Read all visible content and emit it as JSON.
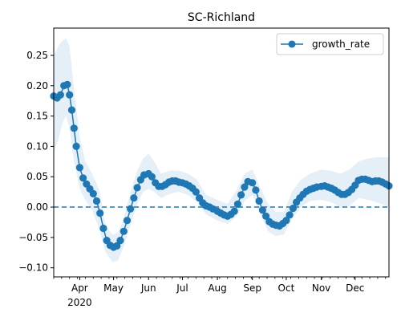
{
  "chart_data": {
    "type": "line",
    "title": "SC-Richland",
    "xlabel": "",
    "ylabel": "",
    "x_range": [
      "2020-03-09",
      "2020-12-31"
    ],
    "ylim": [
      -0.115,
      0.295
    ],
    "yticks": [
      -0.1,
      -0.05,
      0.0,
      0.05,
      0.1,
      0.15,
      0.2,
      0.25
    ],
    "ytick_labels": [
      "−0.10",
      "−0.05",
      "0.00",
      "0.05",
      "0.10",
      "0.15",
      "0.20",
      "0.25"
    ],
    "xticks": [
      {
        "date": "2020-04-01",
        "label": "Apr",
        "sublabel": "2020"
      },
      {
        "date": "2020-05-01",
        "label": "May",
        "sublabel": ""
      },
      {
        "date": "2020-06-01",
        "label": "Jun",
        "sublabel": ""
      },
      {
        "date": "2020-07-01",
        "label": "Jul",
        "sublabel": ""
      },
      {
        "date": "2020-08-01",
        "label": "Aug",
        "sublabel": ""
      },
      {
        "date": "2020-09-01",
        "label": "Sep",
        "sublabel": ""
      },
      {
        "date": "2020-10-01",
        "label": "Oct",
        "sublabel": ""
      },
      {
        "date": "2020-11-01",
        "label": "Nov",
        "sublabel": ""
      },
      {
        "date": "2020-12-01",
        "label": "Dec",
        "sublabel": ""
      }
    ],
    "grid": false,
    "legend": {
      "position": "top-right",
      "entries": [
        "growth_rate"
      ]
    },
    "reference_line": {
      "y": 0.0,
      "style": "dashed",
      "color": "#1f77b4"
    },
    "colors": {
      "series": "#1f77b4",
      "band": "#d6e6f5"
    },
    "series": [
      {
        "name": "growth_rate",
        "points": [
          [
            "2020-03-09",
            0.183
          ],
          [
            "2020-03-12",
            0.18
          ],
          [
            "2020-03-15",
            0.185
          ],
          [
            "2020-03-18",
            0.2
          ],
          [
            "2020-03-21",
            0.202
          ],
          [
            "2020-03-23",
            0.185
          ],
          [
            "2020-03-25",
            0.16
          ],
          [
            "2020-03-27",
            0.13
          ],
          [
            "2020-03-29",
            0.1
          ],
          [
            "2020-04-01",
            0.065
          ],
          [
            "2020-04-04",
            0.048
          ],
          [
            "2020-04-07",
            0.038
          ],
          [
            "2020-04-10",
            0.03
          ],
          [
            "2020-04-13",
            0.022
          ],
          [
            "2020-04-16",
            0.01
          ],
          [
            "2020-04-19",
            -0.01
          ],
          [
            "2020-04-22",
            -0.035
          ],
          [
            "2020-04-25",
            -0.055
          ],
          [
            "2020-04-28",
            -0.063
          ],
          [
            "2020-05-01",
            -0.066
          ],
          [
            "2020-05-04",
            -0.064
          ],
          [
            "2020-05-07",
            -0.055
          ],
          [
            "2020-05-10",
            -0.04
          ],
          [
            "2020-05-13",
            -0.022
          ],
          [
            "2020-05-16",
            -0.003
          ],
          [
            "2020-05-19",
            0.015
          ],
          [
            "2020-05-22",
            0.032
          ],
          [
            "2020-05-25",
            0.045
          ],
          [
            "2020-05-28",
            0.053
          ],
          [
            "2020-06-01",
            0.055
          ],
          [
            "2020-06-04",
            0.05
          ],
          [
            "2020-06-07",
            0.04
          ],
          [
            "2020-06-10",
            0.034
          ],
          [
            "2020-06-13",
            0.034
          ],
          [
            "2020-06-16",
            0.037
          ],
          [
            "2020-06-19",
            0.041
          ],
          [
            "2020-06-22",
            0.043
          ],
          [
            "2020-06-25",
            0.043
          ],
          [
            "2020-06-28",
            0.041
          ],
          [
            "2020-07-01",
            0.04
          ],
          [
            "2020-07-04",
            0.038
          ],
          [
            "2020-07-07",
            0.035
          ],
          [
            "2020-07-10",
            0.031
          ],
          [
            "2020-07-13",
            0.025
          ],
          [
            "2020-07-16",
            0.015
          ],
          [
            "2020-07-19",
            0.007
          ],
          [
            "2020-07-22",
            0.002
          ],
          [
            "2020-07-25",
            0.0
          ],
          [
            "2020-07-28",
            -0.003
          ],
          [
            "2020-08-01",
            -0.007
          ],
          [
            "2020-08-04",
            -0.01
          ],
          [
            "2020-08-07",
            -0.013
          ],
          [
            "2020-08-10",
            -0.015
          ],
          [
            "2020-08-13",
            -0.012
          ],
          [
            "2020-08-16",
            -0.007
          ],
          [
            "2020-08-19",
            0.005
          ],
          [
            "2020-08-22",
            0.02
          ],
          [
            "2020-08-25",
            0.033
          ],
          [
            "2020-08-28",
            0.042
          ],
          [
            "2020-09-01",
            0.04
          ],
          [
            "2020-09-04",
            0.028
          ],
          [
            "2020-09-07",
            0.01
          ],
          [
            "2020-09-10",
            -0.005
          ],
          [
            "2020-09-13",
            -0.015
          ],
          [
            "2020-09-16",
            -0.024
          ],
          [
            "2020-09-19",
            -0.028
          ],
          [
            "2020-09-22",
            -0.03
          ],
          [
            "2020-09-25",
            -0.031
          ],
          [
            "2020-09-28",
            -0.027
          ],
          [
            "2020-10-01",
            -0.022
          ],
          [
            "2020-10-04",
            -0.013
          ],
          [
            "2020-10-07",
            -0.002
          ],
          [
            "2020-10-10",
            0.008
          ],
          [
            "2020-10-13",
            0.015
          ],
          [
            "2020-10-16",
            0.021
          ],
          [
            "2020-10-19",
            0.026
          ],
          [
            "2020-10-22",
            0.029
          ],
          [
            "2020-10-25",
            0.031
          ],
          [
            "2020-10-28",
            0.033
          ],
          [
            "2020-11-01",
            0.034
          ],
          [
            "2020-11-04",
            0.035
          ],
          [
            "2020-11-07",
            0.033
          ],
          [
            "2020-11-10",
            0.031
          ],
          [
            "2020-11-13",
            0.028
          ],
          [
            "2020-11-16",
            0.024
          ],
          [
            "2020-11-19",
            0.021
          ],
          [
            "2020-11-22",
            0.021
          ],
          [
            "2020-11-25",
            0.024
          ],
          [
            "2020-11-28",
            0.029
          ],
          [
            "2020-12-01",
            0.036
          ],
          [
            "2020-12-04",
            0.044
          ],
          [
            "2020-12-07",
            0.046
          ],
          [
            "2020-12-10",
            0.046
          ],
          [
            "2020-12-13",
            0.044
          ],
          [
            "2020-12-16",
            0.042
          ],
          [
            "2020-12-19",
            0.043
          ],
          [
            "2020-12-22",
            0.043
          ],
          [
            "2020-12-25",
            0.041
          ],
          [
            "2020-12-28",
            0.038
          ],
          [
            "2020-12-31",
            0.035
          ]
        ],
        "band": [
          [
            "2020-03-09",
            0.09,
            0.25
          ],
          [
            "2020-03-13",
            0.11,
            0.265
          ],
          [
            "2020-03-17",
            0.14,
            0.275
          ],
          [
            "2020-03-20",
            0.15,
            0.278
          ],
          [
            "2020-03-23",
            0.13,
            0.265
          ],
          [
            "2020-03-27",
            0.075,
            0.195
          ],
          [
            "2020-04-01",
            0.03,
            0.115
          ],
          [
            "2020-04-06",
            0.012,
            0.075
          ],
          [
            "2020-04-12",
            -0.005,
            0.055
          ],
          [
            "2020-04-18",
            -0.035,
            0.03
          ],
          [
            "2020-04-24",
            -0.075,
            -0.03
          ],
          [
            "2020-04-30",
            -0.09,
            -0.045
          ],
          [
            "2020-05-05",
            -0.088,
            -0.042
          ],
          [
            "2020-05-10",
            -0.065,
            -0.018
          ],
          [
            "2020-05-16",
            -0.03,
            0.025
          ],
          [
            "2020-05-22",
            0.005,
            0.06
          ],
          [
            "2020-05-27",
            0.025,
            0.08
          ],
          [
            "2020-06-01",
            0.03,
            0.088
          ],
          [
            "2020-06-06",
            0.025,
            0.075
          ],
          [
            "2020-06-12",
            0.015,
            0.055
          ],
          [
            "2020-06-20",
            0.022,
            0.06
          ],
          [
            "2020-06-28",
            0.025,
            0.06
          ],
          [
            "2020-07-06",
            0.02,
            0.055
          ],
          [
            "2020-07-14",
            0.008,
            0.045
          ],
          [
            "2020-07-22",
            -0.012,
            0.02
          ],
          [
            "2020-08-01",
            -0.022,
            0.012
          ],
          [
            "2020-08-10",
            -0.028,
            0.005
          ],
          [
            "2020-08-18",
            -0.015,
            0.028
          ],
          [
            "2020-08-25",
            0.01,
            0.055
          ],
          [
            "2020-09-01",
            0.02,
            0.062
          ],
          [
            "2020-09-08",
            -0.012,
            0.032
          ],
          [
            "2020-09-15",
            -0.04,
            0.005
          ],
          [
            "2020-09-22",
            -0.048,
            -0.008
          ],
          [
            "2020-09-29",
            -0.045,
            -0.008
          ],
          [
            "2020-10-06",
            -0.02,
            0.025
          ],
          [
            "2020-10-14",
            0.0,
            0.045
          ],
          [
            "2020-10-22",
            0.01,
            0.055
          ],
          [
            "2020-11-01",
            0.012,
            0.062
          ],
          [
            "2020-11-10",
            0.008,
            0.06
          ],
          [
            "2020-11-18",
            0.0,
            0.055
          ],
          [
            "2020-11-26",
            0.002,
            0.062
          ],
          [
            "2020-12-04",
            0.015,
            0.075
          ],
          [
            "2020-12-12",
            0.012,
            0.08
          ],
          [
            "2020-12-20",
            0.008,
            0.082
          ],
          [
            "2020-12-31",
            0.0,
            0.082
          ]
        ]
      }
    ]
  }
}
